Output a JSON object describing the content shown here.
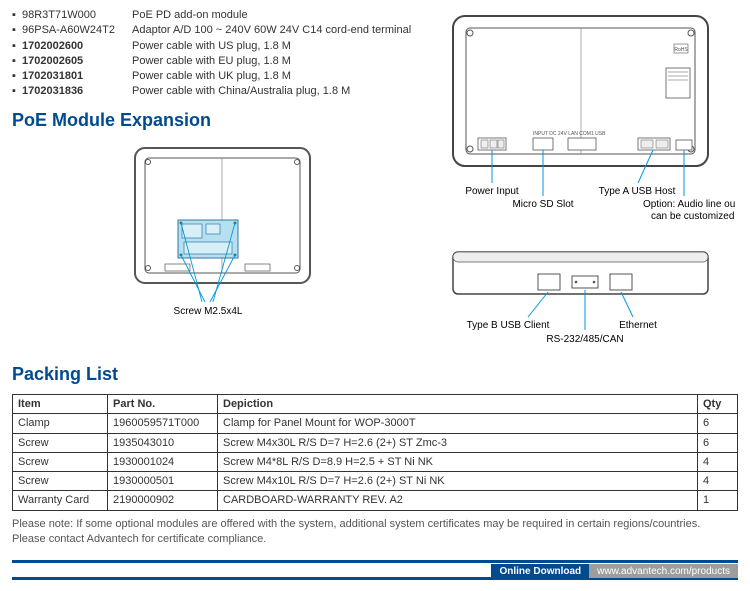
{
  "parts": [
    {
      "pn": "98R3T71W000",
      "bold": false,
      "desc": "PoE PD add-on module"
    },
    {
      "pn": "96PSA-A60W24T2",
      "bold": false,
      "desc": "Adaptor A/D 100 ~ 240V 60W 24V C14 cord-end terminal"
    },
    {
      "pn": "1702002600",
      "bold": true,
      "desc": "Power cable with US plug, 1.8 M"
    },
    {
      "pn": "1702002605",
      "bold": true,
      "desc": "Power cable with EU plug, 1.8 M"
    },
    {
      "pn": "1702031801",
      "bold": true,
      "desc": "Power cable with UK plug, 1.8 M"
    },
    {
      "pn": "1702031836",
      "bold": true,
      "desc": "Power cable with China/Australia plug, 1.8 M"
    }
  ],
  "section1": "PoE Module Expansion",
  "section2": "Packing List",
  "module_label": "Screw M2.5x4L",
  "rear_labels": {
    "power": "Power Input",
    "usb_a": "Type A USB Host",
    "sd": "Micro SD Slot",
    "audio": "Option: Audio line out\ncan be customized"
  },
  "side_labels": {
    "usb_b": "Type B USB Client",
    "eth": "Ethernet",
    "serial": "RS-232/485/CAN"
  },
  "table": {
    "headers": [
      "Item",
      "Part No.",
      "Depiction",
      "Qty"
    ],
    "rows": [
      [
        "Clamp",
        "1960059571T000",
        "Clamp for Panel Mount for WOP-3000T",
        "6"
      ],
      [
        "Screw",
        "1935043010",
        "Screw M4x30L R/S D=7 H=2.6 (2+) ST Zmc-3",
        "6"
      ],
      [
        "Screw",
        "1930001024",
        "Screw M4*8L R/S D=8.9 H=2.5 + ST Ni NK",
        "4"
      ],
      [
        "Screw",
        "1930000501",
        "Screw M4x10L R/S D=7 H=2.6 (2+) ST Ni NK",
        "4"
      ],
      [
        "Warranty Card",
        "2190000902",
        "CARDBOARD-WARRANTY REV. A2",
        "1"
      ]
    ]
  },
  "note1": "Please note: If some optional modules are offered with the system, additional system certificates may be required in certain regions/countries.",
  "note2": "Please contact Advantech for certificate compliance.",
  "footer_label": "Online Download",
  "footer_url": "www.advantech.com/products",
  "colors": {
    "brand": "#004a8f",
    "callout": "#0099dd"
  }
}
